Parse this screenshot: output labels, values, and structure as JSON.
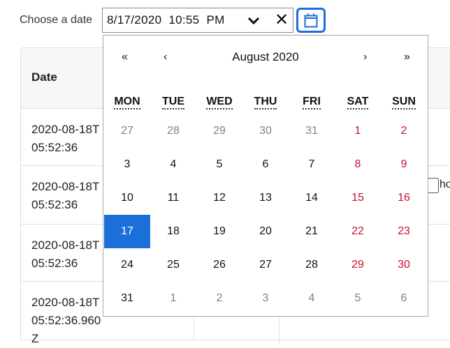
{
  "field_label": "Choose a date",
  "datetime_value": "8/17/2020  10:55  PM",
  "table": {
    "header_date": "Date",
    "rows": [
      "2020-08-18T05:52:36",
      "2020-08-18T05:52:36",
      "2020-08-18T05:52:36",
      "2020-08-18T05:52:36.960Z"
    ],
    "checkbox_label": "ho"
  },
  "calendar": {
    "prev_year": "«",
    "prev_month": "‹",
    "month_year": "August 2020",
    "next_month": "›",
    "next_year": "»",
    "weekdays": [
      "MON",
      "TUE",
      "WED",
      "THU",
      "FRI",
      "SAT",
      "SUN"
    ],
    "weeks": [
      [
        "27",
        "28",
        "29",
        "30",
        "31",
        "1",
        "2"
      ],
      [
        "3",
        "4",
        "5",
        "6",
        "7",
        "8",
        "9"
      ],
      [
        "10",
        "11",
        "12",
        "13",
        "14",
        "15",
        "16"
      ],
      [
        "17",
        "18",
        "19",
        "20",
        "21",
        "22",
        "23"
      ],
      [
        "24",
        "25",
        "26",
        "27",
        "28",
        "29",
        "30"
      ],
      [
        "31",
        "1",
        "2",
        "3",
        "4",
        "5",
        "6"
      ]
    ],
    "selected_day": "17",
    "weekend_color": "#c8102e",
    "selected_color": "#1a6fd8"
  },
  "icons": {
    "dropdown": "chevron-down-icon",
    "clear": "close-icon",
    "calendar": "calendar-icon"
  }
}
